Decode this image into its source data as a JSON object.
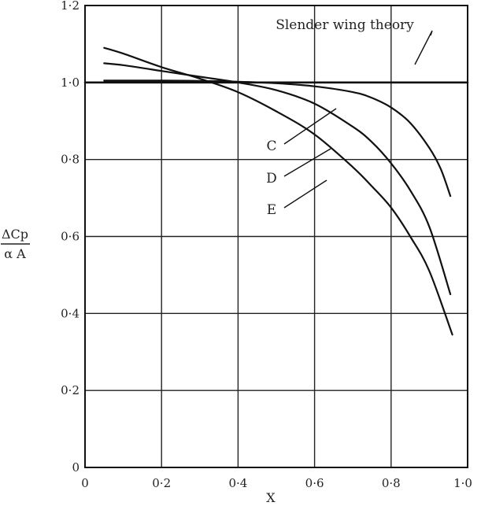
{
  "chart_data": {
    "type": "line",
    "title": "",
    "xlabel": "X",
    "ylabel_num": "ΔCp",
    "ylabel_den": "α A",
    "xlim": [
      0,
      1.0
    ],
    "ylim": [
      0,
      1.2
    ],
    "grid": true,
    "x_ticks": [
      {
        "v": 0,
        "label": "0"
      },
      {
        "v": 0.2,
        "label": "0·2"
      },
      {
        "v": 0.4,
        "label": "0·4"
      },
      {
        "v": 0.6,
        "label": "0·6"
      },
      {
        "v": 0.8,
        "label": "0·8"
      },
      {
        "v": 1.0,
        "label": "1·0"
      }
    ],
    "y_ticks": [
      {
        "v": 0,
        "label": "0"
      },
      {
        "v": 0.2,
        "label": "0·2"
      },
      {
        "v": 0.4,
        "label": "0·4"
      },
      {
        "v": 0.6,
        "label": "0·6"
      },
      {
        "v": 0.8,
        "label": "0·8"
      },
      {
        "v": 1.0,
        "label": "1·0"
      },
      {
        "v": 1.2,
        "label": "1·2"
      }
    ],
    "series": [
      {
        "name": "Slender wing theory",
        "x": [
          0,
          0.2,
          0.4,
          0.6,
          0.8,
          1.0
        ],
        "y": [
          1.0,
          1.0,
          1.0,
          1.0,
          1.0,
          1.0
        ]
      },
      {
        "name": "C",
        "x": [
          0.05,
          0.2,
          0.3,
          0.4,
          0.5,
          0.6,
          0.7,
          0.75,
          0.8,
          0.85,
          0.9,
          0.93,
          0.955
        ],
        "y": [
          1.005,
          1.005,
          1.004,
          1.002,
          0.998,
          0.99,
          0.975,
          0.96,
          0.935,
          0.895,
          0.83,
          0.775,
          0.705
        ]
      },
      {
        "name": "D",
        "x": [
          0.05,
          0.1,
          0.2,
          0.3,
          0.4,
          0.5,
          0.6,
          0.7,
          0.75,
          0.8,
          0.85,
          0.9,
          0.955
        ],
        "y": [
          1.05,
          1.045,
          1.03,
          1.015,
          1.0,
          0.98,
          0.945,
          0.885,
          0.845,
          0.79,
          0.72,
          0.625,
          0.45
        ]
      },
      {
        "name": "E",
        "x": [
          0.05,
          0.1,
          0.2,
          0.3,
          0.4,
          0.5,
          0.6,
          0.7,
          0.75,
          0.8,
          0.85,
          0.9,
          0.96
        ],
        "y": [
          1.09,
          1.075,
          1.04,
          1.01,
          0.975,
          0.925,
          0.865,
          0.78,
          0.73,
          0.675,
          0.6,
          0.51,
          0.345
        ]
      }
    ],
    "annotations": [
      {
        "series": "Slender wing theory",
        "text": "Slender wing theory"
      },
      {
        "series": "C",
        "text": "C"
      },
      {
        "series": "D",
        "text": "D"
      },
      {
        "series": "E",
        "text": "E"
      }
    ]
  }
}
